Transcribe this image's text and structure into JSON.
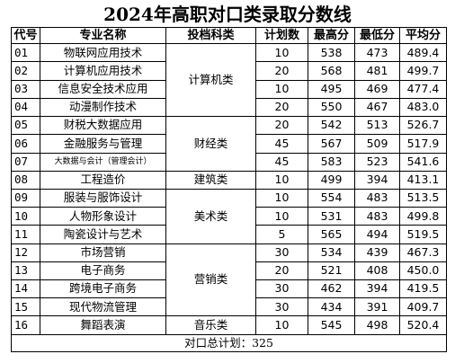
{
  "title": "2024年高职对口类录取分数线",
  "headers": [
    "代号",
    "专业名称",
    "投档科类",
    "计划数",
    "最高分",
    "最低分",
    "平均分"
  ],
  "rows": [
    {
      "code": "01",
      "name": "物联网应用技术",
      "plan": "10",
      "max": "538",
      "min": "473",
      "avg": "489.4"
    },
    {
      "code": "02",
      "name": "计算机应用技术",
      "plan": "20",
      "max": "568",
      "min": "481",
      "avg": "499.7"
    },
    {
      "code": "03",
      "name": "信息安全技术应用",
      "plan": "10",
      "max": "495",
      "min": "469",
      "avg": "477.4"
    },
    {
      "code": "04",
      "name": "动漫制作技术",
      "plan": "20",
      "max": "550",
      "min": "467",
      "avg": "483.0"
    },
    {
      "code": "05",
      "name": "财税大数据应用",
      "plan": "20",
      "max": "542",
      "min": "513",
      "avg": "526.7"
    },
    {
      "code": "06",
      "name": "金融服务与管理",
      "plan": "45",
      "max": "567",
      "min": "509",
      "avg": "517.9"
    },
    {
      "code": "07",
      "name": "大数据与会计（管理会计）",
      "plan": "45",
      "max": "583",
      "min": "523",
      "avg": "541.6"
    },
    {
      "code": "08",
      "name": "工程造价",
      "plan": "10",
      "max": "499",
      "min": "394",
      "avg": "413.1"
    },
    {
      "code": "09",
      "name": "服装与服饰设计",
      "plan": "10",
      "max": "554",
      "min": "483",
      "avg": "513.5"
    },
    {
      "code": "10",
      "name": "人物形象设计",
      "plan": "10",
      "max": "531",
      "min": "483",
      "avg": "499.8"
    },
    {
      "code": "11",
      "name": "陶瓷设计与艺术",
      "plan": "5",
      "max": "565",
      "min": "494",
      "avg": "519.5"
    },
    {
      "code": "12",
      "name": "市场营销",
      "plan": "30",
      "max": "534",
      "min": "439",
      "avg": "467.3"
    },
    {
      "code": "13",
      "name": "电子商务",
      "plan": "20",
      "max": "521",
      "min": "408",
      "avg": "450.0"
    },
    {
      "code": "14",
      "name": "跨境电子商务",
      "plan": "30",
      "max": "462",
      "min": "394",
      "avg": "419.5"
    },
    {
      "code": "15",
      "name": "现代物流管理",
      "plan": "30",
      "max": "434",
      "min": "391",
      "avg": "409.7"
    },
    {
      "code": "16",
      "name": "舞蹈表演",
      "plan": "10",
      "max": "545",
      "min": "498",
      "avg": "520.4"
    }
  ],
  "categories": {
    "computer": "计算机类",
    "finance": "财经类",
    "construction": "建筑类",
    "art": "美术类",
    "marketing": "营销类",
    "music": "音乐类"
  },
  "footer": "对口总计划：325"
}
